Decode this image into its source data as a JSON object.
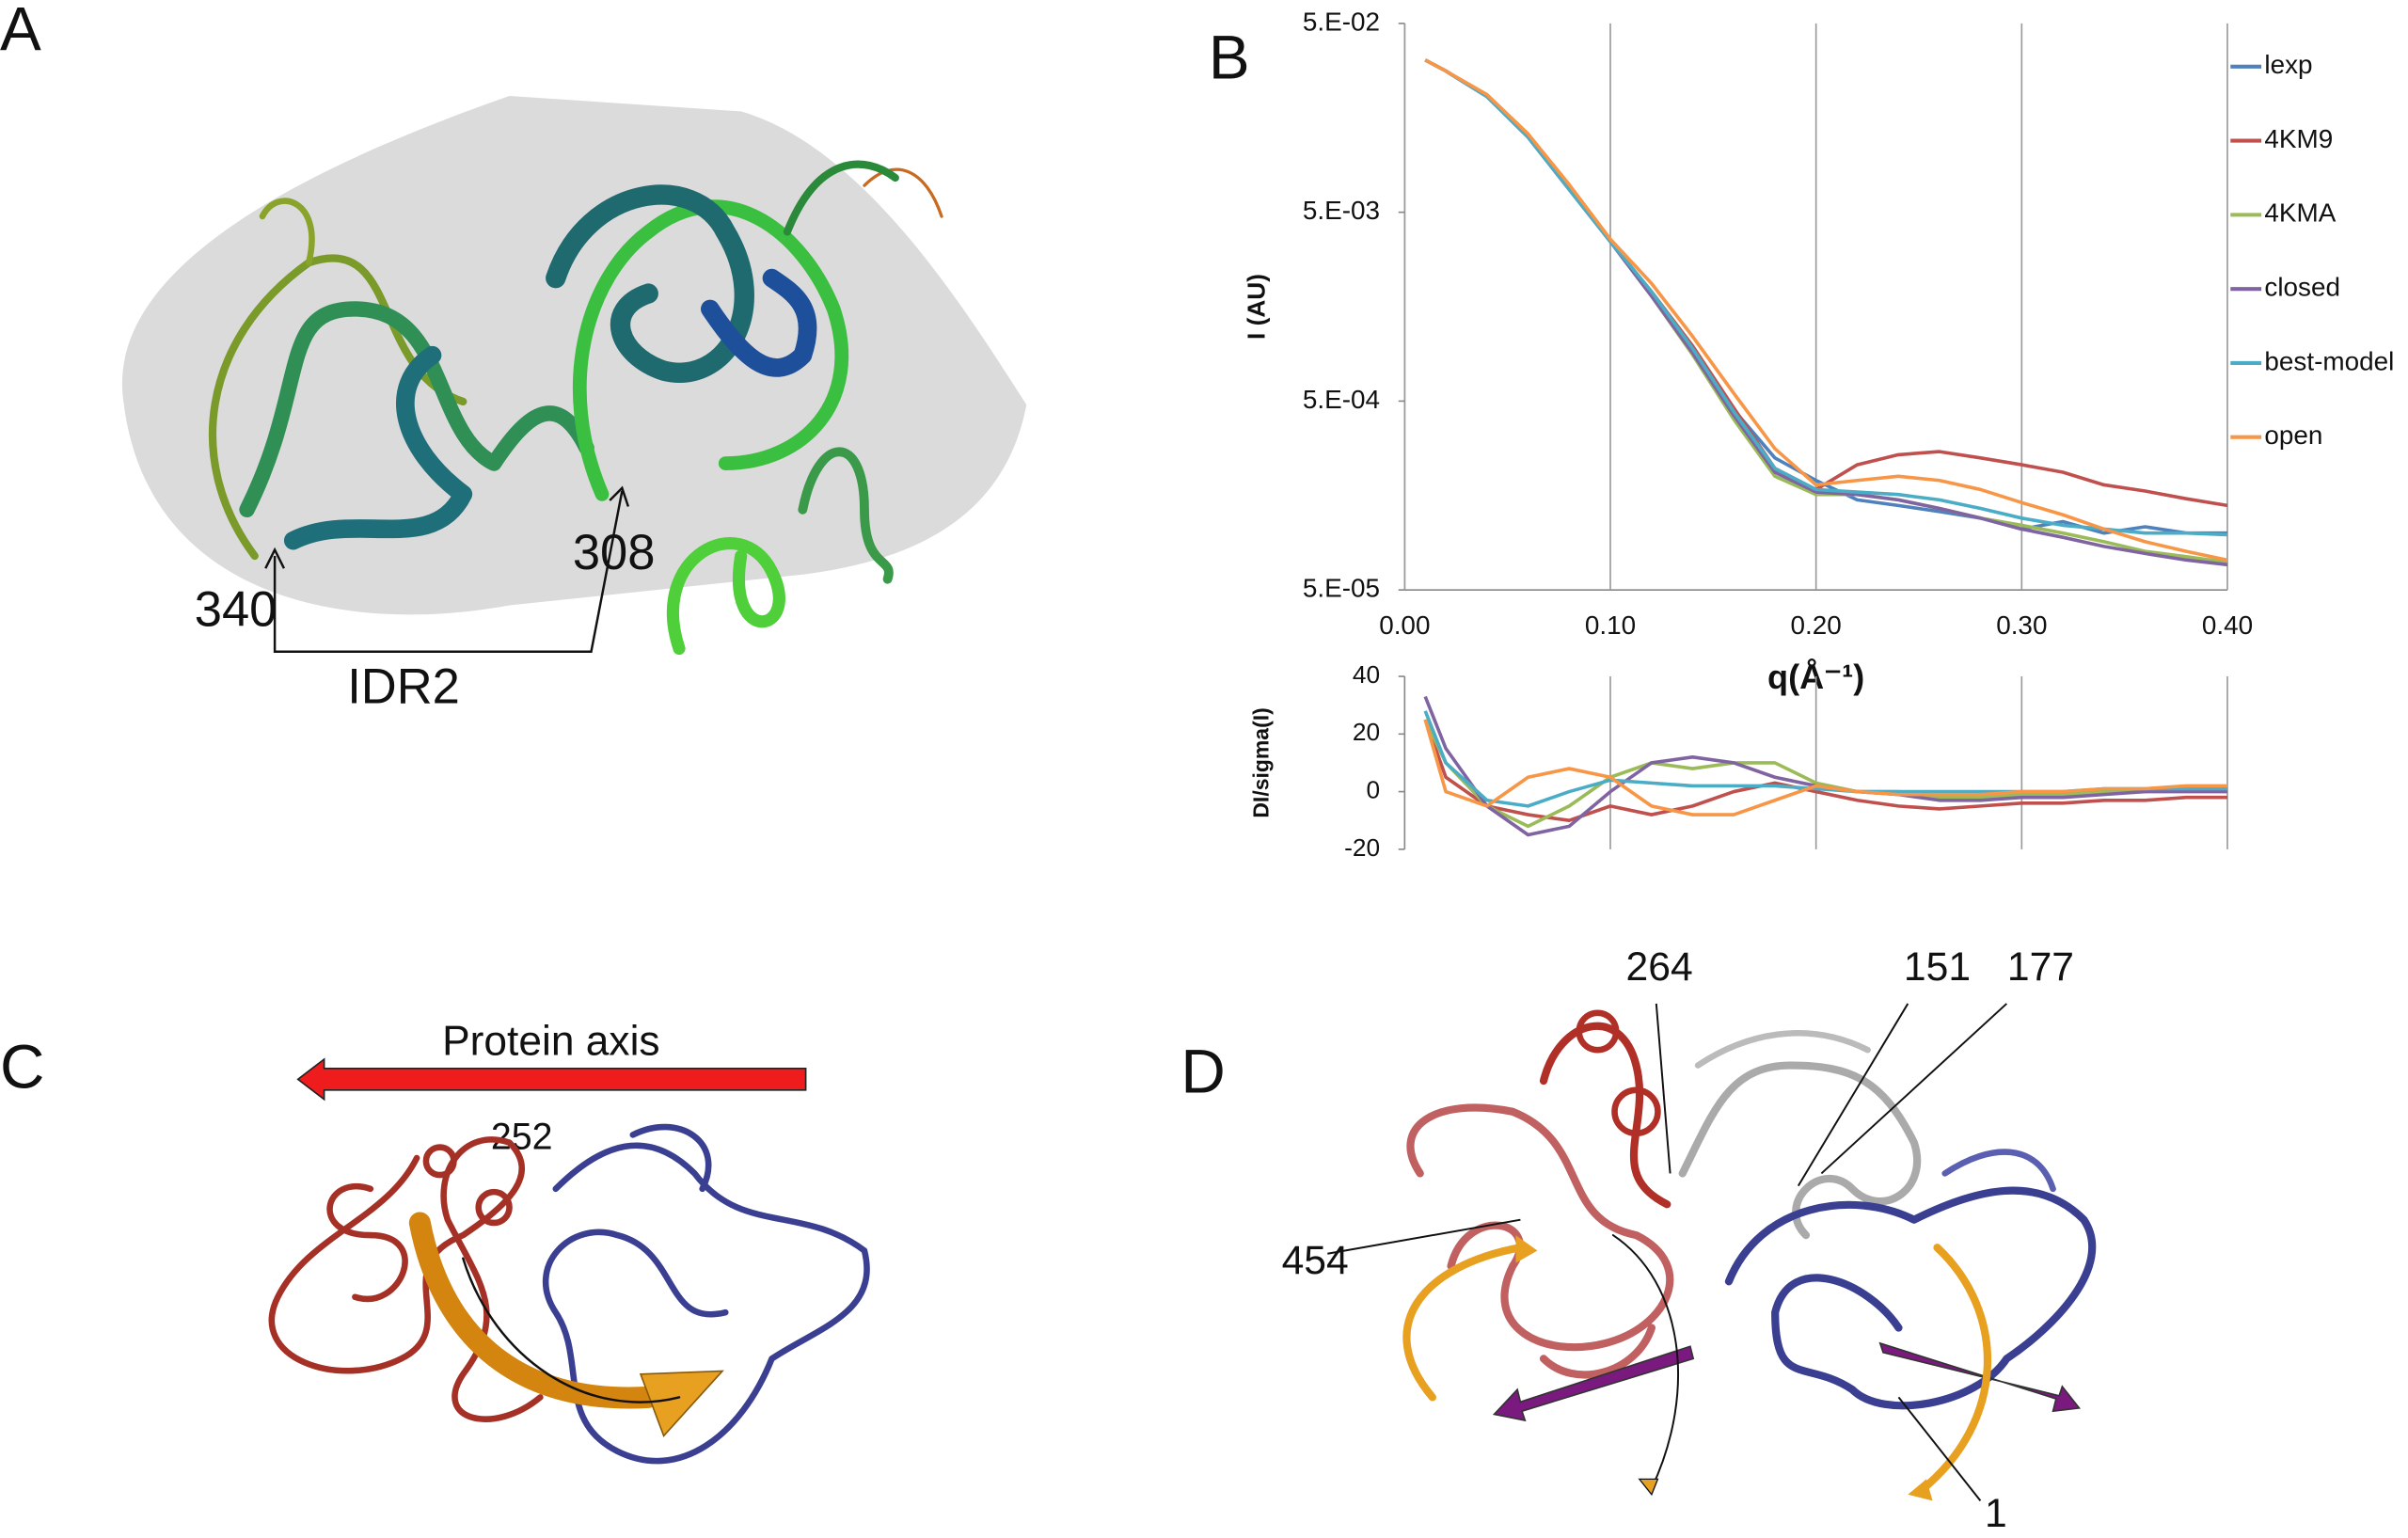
{
  "panels": [
    {
      "letter": "A",
      "labels": [
        "340",
        "308",
        "IDR2"
      ]
    },
    {
      "letter": "B"
    },
    {
      "letter": "C",
      "labels": [
        "Protein axis",
        "252"
      ]
    },
    {
      "letter": "D",
      "labels": [
        "264",
        "151",
        "177",
        "454",
        "1"
      ]
    }
  ],
  "chart_data": [
    {
      "type": "line",
      "y_label": "I (AU)",
      "x_label": "q(Å⁻¹)",
      "log_y": true,
      "grid": true,
      "legend": "right",
      "xtick_labels": true,
      "xlim": [
        0,
        0.4
      ],
      "xticks": [
        {
          "value": 0,
          "label": "0.00"
        },
        {
          "value": 0.1,
          "label": "0.10"
        },
        {
          "value": 0.2,
          "label": "0.20"
        },
        {
          "value": 0.3,
          "label": "0.30"
        },
        {
          "value": 0.4,
          "label": "0.40"
        }
      ],
      "ylim": [
        5e-05,
        0.05
      ],
      "yticks": [
        {
          "value": 5e-05,
          "label": "5.E-05"
        },
        {
          "value": 0.0005,
          "label": "5.E-04"
        },
        {
          "value": 0.005,
          "label": "5.E-03"
        },
        {
          "value": 0.05,
          "label": "5.E-02"
        }
      ],
      "x": [
        0.01,
        0.02,
        0.04,
        0.06,
        0.08,
        0.1,
        0.12,
        0.14,
        0.16,
        0.18,
        0.2,
        0.22,
        0.24,
        0.26,
        0.28,
        0.3,
        0.32,
        0.34,
        0.36,
        0.38,
        0.4
      ],
      "series": [
        {
          "name": "lexp",
          "color": "#4e81bd",
          "values": [
            0.032,
            0.028,
            0.0205,
            0.0125,
            0.0066,
            0.0035,
            0.0018,
            0.00092,
            0.00045,
            0.00025,
            0.00019,
            0.00015,
            0.00014,
            0.00013,
            0.00012,
            0.000105,
            0.000115,
            0.0001,
            0.000108,
            0.0001,
            0.0001
          ]
        },
        {
          "name": "4KM9",
          "color": "#c0504d",
          "values": [
            0.032,
            0.028,
            0.0205,
            0.0125,
            0.0066,
            0.0035,
            0.0019,
            0.00098,
            0.00046,
            0.00022,
            0.00017,
            0.00023,
            0.00026,
            0.00027,
            0.00025,
            0.00023,
            0.00021,
            0.00018,
            0.000167,
            0.000152,
            0.00014
          ]
        },
        {
          "name": "4KMA",
          "color": "#9bbb59",
          "values": [
            0.032,
            0.028,
            0.0205,
            0.0125,
            0.0066,
            0.0035,
            0.0018,
            0.00088,
            0.0004,
            0.0002,
            0.00016,
            0.00016,
            0.00015,
            0.000135,
            0.00012,
            0.00011,
            0.0001,
            9e-05,
            8e-05,
            7.5e-05,
            7e-05
          ]
        },
        {
          "name": "closed",
          "color": "#8064a2",
          "values": [
            0.032,
            0.028,
            0.0205,
            0.0125,
            0.0066,
            0.0035,
            0.0018,
            0.0009,
            0.00042,
            0.00021,
            0.000165,
            0.00016,
            0.00015,
            0.000135,
            0.00012,
            0.000105,
            9.5e-05,
            8.5e-05,
            7.8e-05,
            7.2e-05,
            6.8e-05
          ]
        },
        {
          "name": "best-model",
          "color": "#4bacc6",
          "values": [
            0.032,
            0.028,
            0.0205,
            0.0125,
            0.0066,
            0.0035,
            0.0019,
            0.00095,
            0.00044,
            0.00022,
            0.00017,
            0.000165,
            0.00016,
            0.00015,
            0.000135,
            0.00012,
            0.00011,
            0.000105,
            0.0001,
            0.0001,
            9.8e-05
          ]
        },
        {
          "name": "open",
          "color": "#f79646",
          "values": [
            0.032,
            0.028,
            0.021,
            0.013,
            0.007,
            0.0036,
            0.0021,
            0.0011,
            0.00055,
            0.00028,
            0.00018,
            0.00019,
            0.0002,
            0.00019,
            0.00017,
            0.000145,
            0.000125,
            0.000105,
            9e-05,
            8e-05,
            7.2e-05
          ]
        }
      ]
    },
    {
      "type": "line",
      "y_label": "DI/sigma(I)",
      "grid": true,
      "xtick_labels": false,
      "xlim": [
        0,
        0.4
      ],
      "xticks": [
        0.1,
        0.2,
        0.3,
        0.4
      ],
      "ylim": [
        -20,
        40
      ],
      "yticks": [
        -20,
        0,
        20,
        40
      ],
      "x": [
        0.01,
        0.02,
        0.04,
        0.06,
        0.08,
        0.1,
        0.12,
        0.14,
        0.16,
        0.18,
        0.2,
        0.22,
        0.24,
        0.26,
        0.28,
        0.3,
        0.32,
        0.34,
        0.36,
        0.38,
        0.4
      ],
      "series": [
        {
          "color": "#c0504d",
          "values": [
            25,
            5,
            -5,
            -8,
            -10,
            -5,
            -8,
            -5,
            0,
            3,
            0,
            -3,
            -5,
            -6,
            -5,
            -4,
            -4,
            -3,
            -3,
            -2,
            -2
          ]
        },
        {
          "color": "#9bbb59",
          "values": [
            25,
            10,
            -5,
            -12,
            -5,
            5,
            10,
            8,
            10,
            10,
            3,
            0,
            0,
            -2,
            -2,
            -1,
            -1,
            0,
            0,
            1,
            1
          ]
        },
        {
          "color": "#8064a2",
          "values": [
            33,
            15,
            -5,
            -15,
            -12,
            0,
            10,
            12,
            10,
            5,
            2,
            0,
            -1,
            -3,
            -3,
            -2,
            -2,
            -1,
            0,
            0,
            0
          ]
        },
        {
          "color": "#4bacc6",
          "values": [
            28,
            10,
            -3,
            -5,
            0,
            4,
            3,
            2,
            2,
            2,
            1,
            0,
            0,
            0,
            0,
            0,
            0,
            1,
            1,
            1,
            1
          ]
        },
        {
          "color": "#f79646",
          "values": [
            25,
            0,
            -5,
            5,
            8,
            5,
            -5,
            -8,
            -8,
            -3,
            2,
            0,
            -1,
            -1,
            -1,
            0,
            0,
            1,
            1,
            2,
            2
          ]
        }
      ]
    }
  ]
}
